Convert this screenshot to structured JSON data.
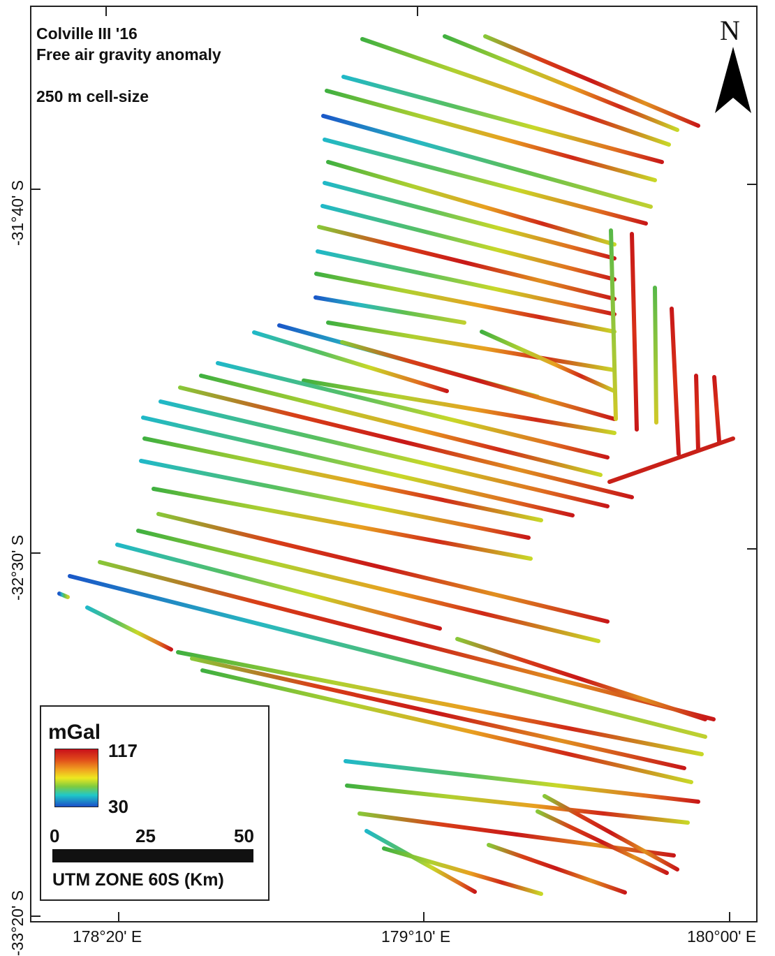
{
  "map": {
    "title_lines": [
      "Colville III '16",
      "Free air gravity anomaly",
      "250 m cell-size"
    ],
    "north_label": "N",
    "lat_labels": [
      "-31°40' S",
      "-32°30' S",
      "-33°20' S"
    ],
    "lon_labels": [
      "178°20' E",
      "179°10' E",
      "180°00' E"
    ]
  },
  "legend": {
    "unit": "mGal",
    "max": "117",
    "min": "30",
    "scale_labels": [
      "0",
      "25",
      "50"
    ],
    "scale_unit": "UTM ZONE 60S (Km)"
  },
  "colors": {
    "high": "#c8101a",
    "mid": "#eee820",
    "low": "#1a4fc8",
    "frame": "#222222"
  },
  "icons": [
    "north-arrow-icon"
  ]
}
